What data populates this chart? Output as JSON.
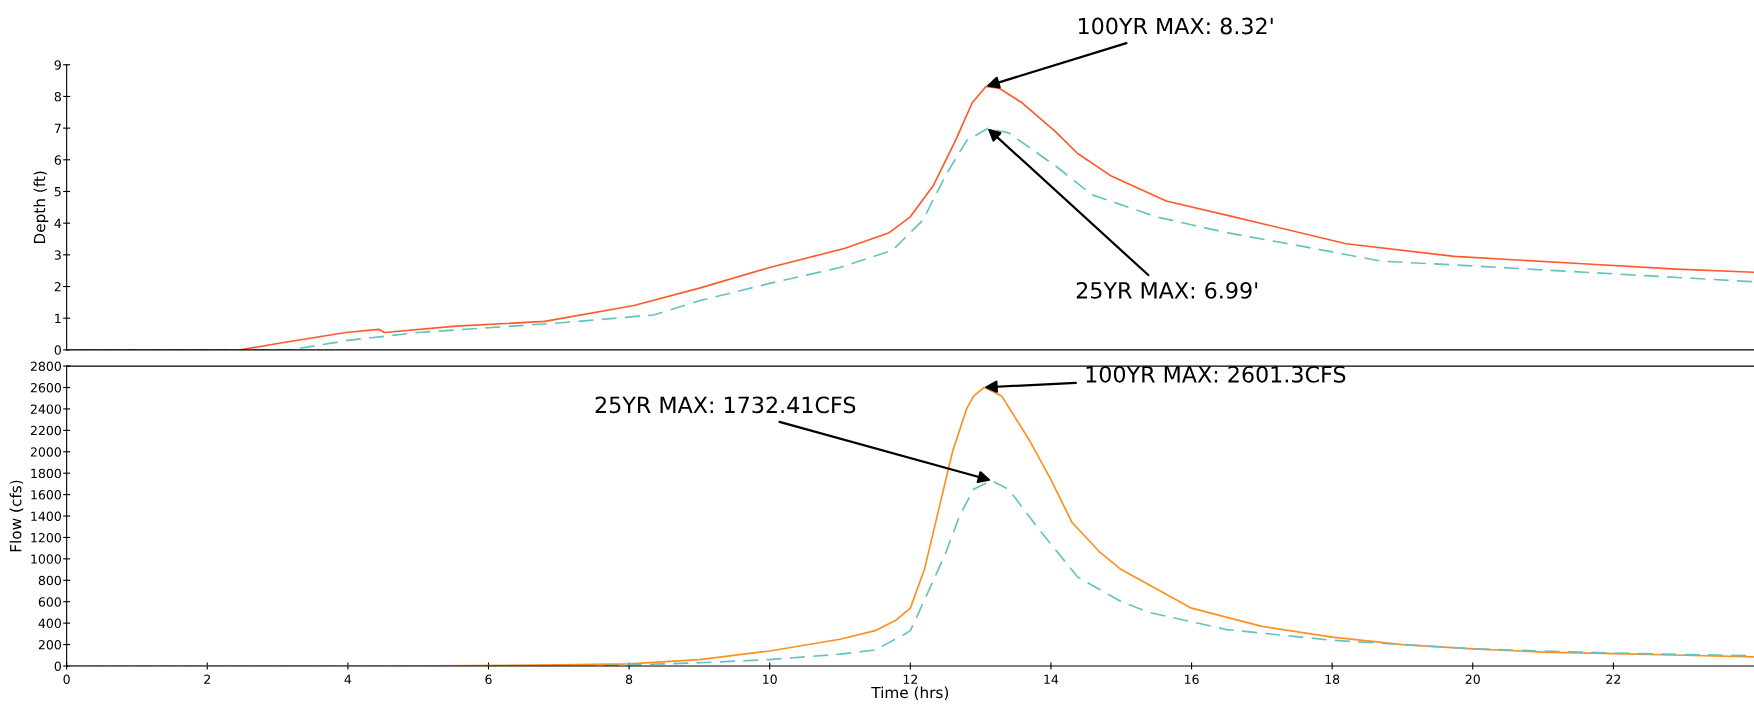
{
  "chart_data": [
    {
      "type": "line",
      "ylabel": "Depth (ft)",
      "xlim": [
        0,
        24
      ],
      "ylim": [
        0,
        9
      ],
      "xticks": [
        0,
        2,
        4,
        6,
        8,
        10,
        12,
        14,
        16,
        18,
        20,
        22
      ],
      "yticks": [
        0,
        1,
        2,
        3,
        4,
        5,
        6,
        7,
        8,
        9
      ],
      "tick_labels": "y",
      "grid": false,
      "legend": false,
      "series": [
        {
          "color": "#ff5a2a",
          "line_style": "solid",
          "x": [
            0,
            2.47,
            3.0,
            3.97,
            4.44,
            4.52,
            5.54,
            6.8,
            8.07,
            9.0,
            10.0,
            11.06,
            11.7,
            12.0,
            12.33,
            12.64,
            12.88,
            13.08,
            13.27,
            13.59,
            14.06,
            14.38,
            14.85,
            15.64,
            16.6,
            18.2,
            19.74,
            21.32,
            22.9,
            24.0
          ],
          "values": [
            0,
            0,
            0.2,
            0.55,
            0.65,
            0.55,
            0.75,
            0.9,
            1.4,
            1.95,
            2.6,
            3.2,
            3.7,
            4.2,
            5.2,
            6.6,
            7.8,
            8.32,
            8.25,
            7.8,
            6.9,
            6.2,
            5.5,
            4.7,
            4.2,
            3.35,
            2.95,
            2.75,
            2.55,
            2.45
          ]
        },
        {
          "color": "#66c2c2",
          "line_style": "dashed",
          "x": [
            0,
            3.18,
            4.0,
            5.0,
            6.0,
            7.0,
            8.35,
            9.0,
            10.0,
            11.0,
            11.75,
            12.18,
            12.5,
            12.8,
            13.1,
            13.4,
            14.1,
            14.58,
            15.5,
            16.5,
            17.5,
            18.7,
            20.0,
            22.0,
            24.0
          ],
          "values": [
            0,
            0,
            0.3,
            0.55,
            0.7,
            0.85,
            1.1,
            1.55,
            2.1,
            2.6,
            3.15,
            4.1,
            5.5,
            6.6,
            6.99,
            6.85,
            5.75,
            4.9,
            4.2,
            3.7,
            3.3,
            2.8,
            2.65,
            2.4,
            2.15
          ]
        }
      ],
      "annotations": [
        {
          "text": "100YR MAX: 8.32'",
          "x": 13.08,
          "y": 8.32
        },
        {
          "text": "25YR MAX: 6.99'",
          "x": 13.1,
          "y": 6.99
        }
      ]
    },
    {
      "type": "line",
      "xlabel": "Time (hrs)",
      "ylabel": "Flow (cfs)",
      "xlim": [
        0,
        24
      ],
      "ylim": [
        0,
        2800
      ],
      "xticks": [
        0,
        2,
        4,
        6,
        8,
        10,
        12,
        14,
        16,
        18,
        20,
        22
      ],
      "yticks": [
        0,
        200,
        400,
        600,
        800,
        1000,
        1200,
        1400,
        1600,
        1800,
        2000,
        2200,
        2400,
        2600,
        2800
      ],
      "grid": false,
      "legend": false,
      "series": [
        {
          "color": "#ff9020",
          "line_style": "solid",
          "x": [
            0,
            4.7,
            7.0,
            8.0,
            9.0,
            10.0,
            11.0,
            11.5,
            11.8,
            12.0,
            12.2,
            12.4,
            12.6,
            12.8,
            12.9,
            13.05,
            13.3,
            13.7,
            14.0,
            14.3,
            14.7,
            15.0,
            16.0,
            17.0,
            18.0,
            19.0,
            20.0,
            21.0,
            22.0,
            23.0,
            24.0
          ],
          "values": [
            0,
            0,
            10,
            20,
            60,
            140,
            250,
            330,
            430,
            540,
            900,
            1450,
            2000,
            2400,
            2520,
            2601.3,
            2520,
            2100,
            1740,
            1340,
            1060,
            900,
            540,
            370,
            270,
            200,
            160,
            130,
            115,
            100,
            85
          ]
        },
        {
          "color": "#66c2c2",
          "line_style": "dashed",
          "x": [
            0,
            7.5,
            8.0,
            9.0,
            10.0,
            11.0,
            11.5,
            11.9,
            12.0,
            12.1,
            12.5,
            12.7,
            12.9,
            13.15,
            13.4,
            13.8,
            14.38,
            15.0,
            15.4,
            16.5,
            18.0,
            20.0,
            22.0,
            24.0
          ],
          "values": [
            0,
            0,
            10,
            30,
            60,
            110,
            150,
            290,
            330,
            470,
            1050,
            1400,
            1650,
            1732.41,
            1650,
            1300,
            830,
            600,
            500,
            340,
            240,
            160,
            120,
            95
          ]
        }
      ],
      "annotations": [
        {
          "text": "100YR MAX: 2601.3CFS",
          "x": 13.05,
          "y": 2601.3
        },
        {
          "text": "25YR MAX: 1732.41CFS",
          "x": 13.15,
          "y": 1732.41
        }
      ]
    }
  ]
}
